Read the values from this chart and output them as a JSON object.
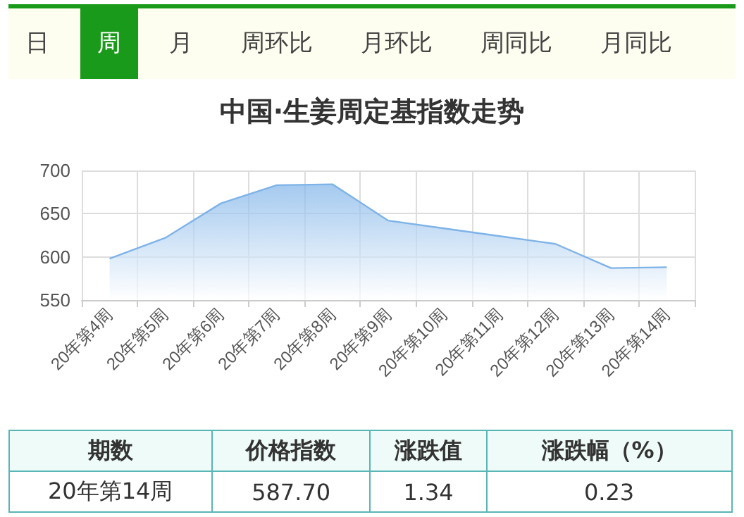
{
  "chart_data": {
    "type": "area",
    "title": "中国·生姜周定基指数走势",
    "categories": [
      "20年第4周",
      "20年第5周",
      "20年第6周",
      "20年第7周",
      "20年第8周",
      "20年第9周",
      "20年第10周",
      "20年第11周",
      "20年第12周",
      "20年第13周",
      "20年第14周"
    ],
    "series": [
      {
        "color": "#7eb3e8",
        "values": [
          598,
          622,
          662,
          683,
          684,
          642,
          633,
          624,
          615,
          587,
          588
        ]
      }
    ],
    "ylim": [
      550,
      700
    ],
    "yticks": [
      550,
      600,
      650,
      700
    ],
    "grid": true,
    "marker": "none",
    "line_style": "solid",
    "annotations": [
      "日",
      "周",
      "月",
      "周环比",
      "月环比",
      "周同比",
      "月同比",
      "期数",
      "价格指数",
      "涨跌值",
      "涨跌幅（%）",
      "20年第14周",
      "587.70",
      "1.34",
      "0.23"
    ]
  }
}
